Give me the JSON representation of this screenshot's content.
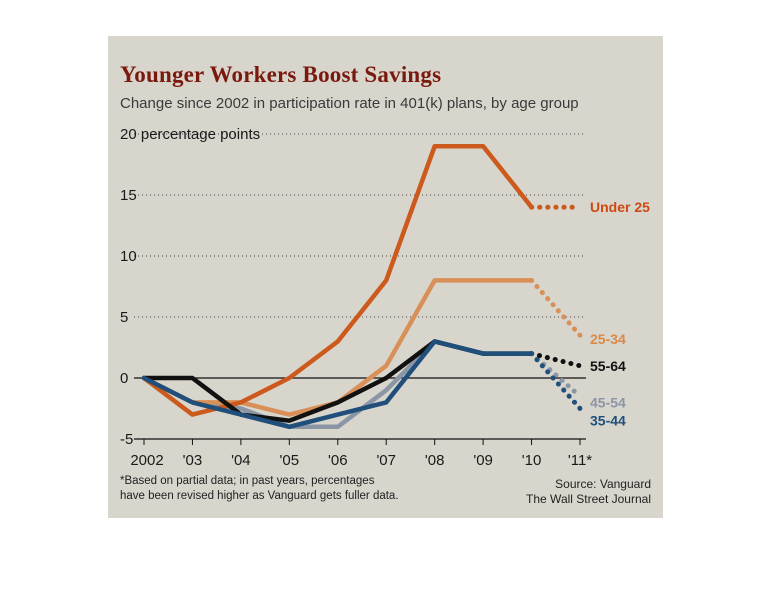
{
  "chart_data": {
    "type": "line",
    "title": "Younger Workers Boost Savings",
    "subtitle": "Change since 2002 in participation rate in 401(k) plans, by age group",
    "ylabel": "percentage points",
    "ylim": [
      -5,
      20
    ],
    "yticks": [
      -5,
      0,
      5,
      10,
      15,
      20
    ],
    "ytick_labels": [
      "-5",
      "0",
      "5",
      "10",
      "15",
      "20 percentage points"
    ],
    "x": [
      2002,
      2003,
      2004,
      2005,
      2006,
      2007,
      2008,
      2009,
      2010,
      2011
    ],
    "x_labels": [
      "2002",
      "'03",
      "'04",
      "'05",
      "'06",
      "'07",
      "'08",
      "'09",
      "'10",
      "'11*"
    ],
    "grid": "horizontal dotted",
    "series": [
      {
        "name": "Under 25",
        "color": "#cc5a1c",
        "label_color": "#cc4a12",
        "values": [
          0,
          -3,
          -2,
          0,
          3,
          8,
          19,
          19,
          14,
          14
        ],
        "dotted_from": 2010
      },
      {
        "name": "25-34",
        "color": "#d99058",
        "label_color": "#d98a4a",
        "values": [
          0,
          -2,
          -2,
          -3,
          -2,
          1,
          8,
          8,
          8,
          3.5
        ],
        "dotted_from": 2010
      },
      {
        "name": "55-64",
        "color": "#111111",
        "label_color": "#111111",
        "values": [
          0,
          0,
          -3,
          -3.5,
          -2,
          0,
          3,
          2,
          2,
          1
        ],
        "dotted_from": 2010
      },
      {
        "name": "45-54",
        "color": "#8a96a6",
        "label_color": "#8a96a6",
        "values": [
          0,
          -2,
          -2.5,
          -4,
          -4,
          -1,
          3,
          2,
          2,
          -1.5
        ],
        "dotted_from": 2010
      },
      {
        "name": "35-44",
        "color": "#1f4f7a",
        "label_color": "#1f4f7a",
        "values": [
          0,
          -2,
          -3,
          -4,
          -3,
          -2,
          3,
          2,
          2,
          -2.5
        ],
        "dotted_from": 2010
      }
    ],
    "footnote": [
      "*Based on partial data; in past years, percentages",
      "have been revised higher as Vanguard gets fuller data."
    ],
    "source": [
      "Source: Vanguard",
      "The Wall Street Journal"
    ]
  }
}
